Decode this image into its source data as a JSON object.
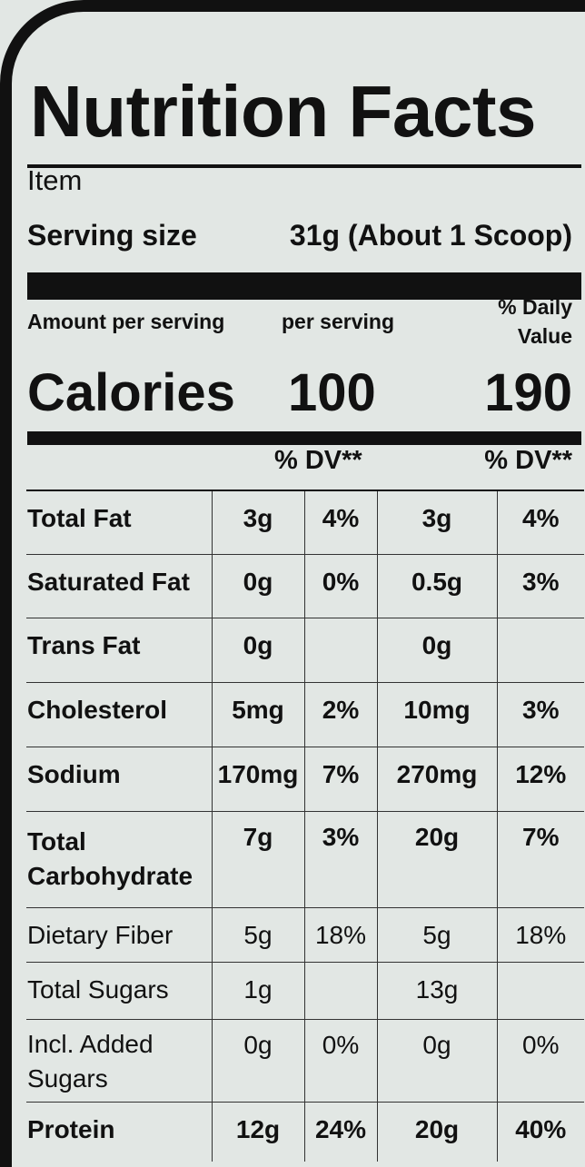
{
  "title": "Nutrition Facts",
  "item_label": "Item",
  "serving": {
    "label": "Serving size",
    "value": "31g (About 1 Scoop)"
  },
  "headers": {
    "amount_per_serving": "Amount per serving",
    "per_serving": "per serving",
    "daily_value_line1": "% Daily",
    "daily_value_line2": "Value",
    "dv_col1": "% DV**",
    "dv_col2": "% DV**"
  },
  "calories": {
    "label": "Calories",
    "value1": "100",
    "value2": "190"
  },
  "nutrients": [
    {
      "name": "Total Fat",
      "a1": "3g",
      "d1": "4%",
      "a2": "3g",
      "d2": "4%"
    },
    {
      "name": "Saturated Fat",
      "a1": "0g",
      "d1": "0%",
      "a2": "0.5g",
      "d2": "3%"
    },
    {
      "name": "Trans Fat",
      "a1": "0g",
      "d1": "",
      "a2": "0g",
      "d2": ""
    },
    {
      "name": "Cholesterol",
      "a1": "5mg",
      "d1": "2%",
      "a2": "10mg",
      "d2": "3%"
    },
    {
      "name": "Sodium",
      "a1": "170mg",
      "d1": "7%",
      "a2": "270mg",
      "d2": "12%"
    },
    {
      "name_line1": "Total",
      "name_line2": "Carbohydrate",
      "a1": "7g",
      "d1": "3%",
      "a2": "20g",
      "d2": "7%"
    },
    {
      "name": "Dietary Fiber",
      "a1": "5g",
      "d1": "18%",
      "a2": "5g",
      "d2": "18%"
    },
    {
      "name": "Total Sugars",
      "a1": "1g",
      "d1": "",
      "a2": "13g",
      "d2": ""
    },
    {
      "name_line1": "Incl. Added",
      "name_line2": "Sugars",
      "a1": "0g",
      "d1": "0%",
      "a2": "0g",
      "d2": "0%"
    },
    {
      "name": "Protein",
      "a1": "12g",
      "d1": "24%",
      "a2": "20g",
      "d2": "40%"
    }
  ]
}
